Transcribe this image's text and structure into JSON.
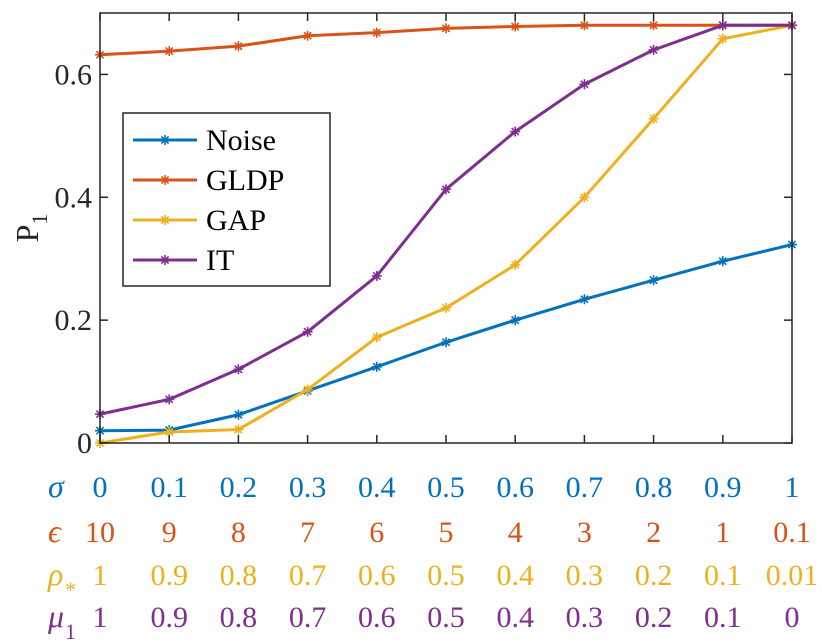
{
  "chart_data": {
    "type": "line",
    "title": "",
    "ylabel": "P",
    "ylabel_subscript": "1",
    "ylim": [
      0,
      0.7
    ],
    "yticks": [
      0,
      0.2,
      0.4,
      0.6
    ],
    "ytick_labels": [
      "0",
      "0.2",
      "0.4",
      "0.6"
    ],
    "x": [
      0,
      0.1,
      0.2,
      0.3,
      0.4,
      0.5,
      0.6,
      0.7,
      0.8,
      0.9,
      1
    ],
    "legend_position": "center-left",
    "series": [
      {
        "name": "Noise",
        "color": "#0072BD",
        "marker": "asterisk",
        "values": [
          0.02,
          0.021,
          0.046,
          0.085,
          0.124,
          0.164,
          0.2,
          0.234,
          0.265,
          0.296,
          0.323
        ]
      },
      {
        "name": "GLDP",
        "color": "#D95319",
        "marker": "asterisk",
        "values": [
          0.632,
          0.638,
          0.646,
          0.663,
          0.668,
          0.675,
          0.678,
          0.68,
          0.68,
          0.68,
          0.68
        ]
      },
      {
        "name": "GAP",
        "color": "#EDB120",
        "marker": "asterisk",
        "values": [
          0.0,
          0.018,
          0.022,
          0.087,
          0.172,
          0.22,
          0.29,
          0.4,
          0.528,
          0.658,
          0.68
        ]
      },
      {
        "name": "IT",
        "color": "#7E2F8E",
        "marker": "asterisk",
        "values": [
          0.047,
          0.071,
          0.12,
          0.181,
          0.272,
          0.413,
          0.507,
          0.584,
          0.64,
          0.68,
          0.68
        ]
      }
    ],
    "parameter_rows": [
      {
        "symbol": "σ",
        "subscript": "",
        "color": "#0072BD",
        "labels": [
          "0",
          "0.1",
          "0.2",
          "0.3",
          "0.4",
          "0.5",
          "0.6",
          "0.7",
          "0.8",
          "0.9",
          "1"
        ]
      },
      {
        "symbol": "ϵ",
        "subscript": "",
        "color": "#D95319",
        "labels": [
          "10",
          "9",
          "8",
          "7",
          "6",
          "5",
          "4",
          "3",
          "2",
          "1",
          "0.1"
        ]
      },
      {
        "symbol": "ρ",
        "subscript": "*",
        "color": "#EDB120",
        "labels": [
          "1",
          "0.9",
          "0.8",
          "0.7",
          "0.6",
          "0.5",
          "0.4",
          "0.3",
          "0.2",
          "0.1",
          "0.01"
        ]
      },
      {
        "symbol": "μ",
        "subscript": "1",
        "color": "#7E2F8E",
        "labels": [
          "1",
          "0.9",
          "0.8",
          "0.7",
          "0.6",
          "0.5",
          "0.4",
          "0.3",
          "0.2",
          "0.1",
          "0"
        ]
      }
    ]
  }
}
